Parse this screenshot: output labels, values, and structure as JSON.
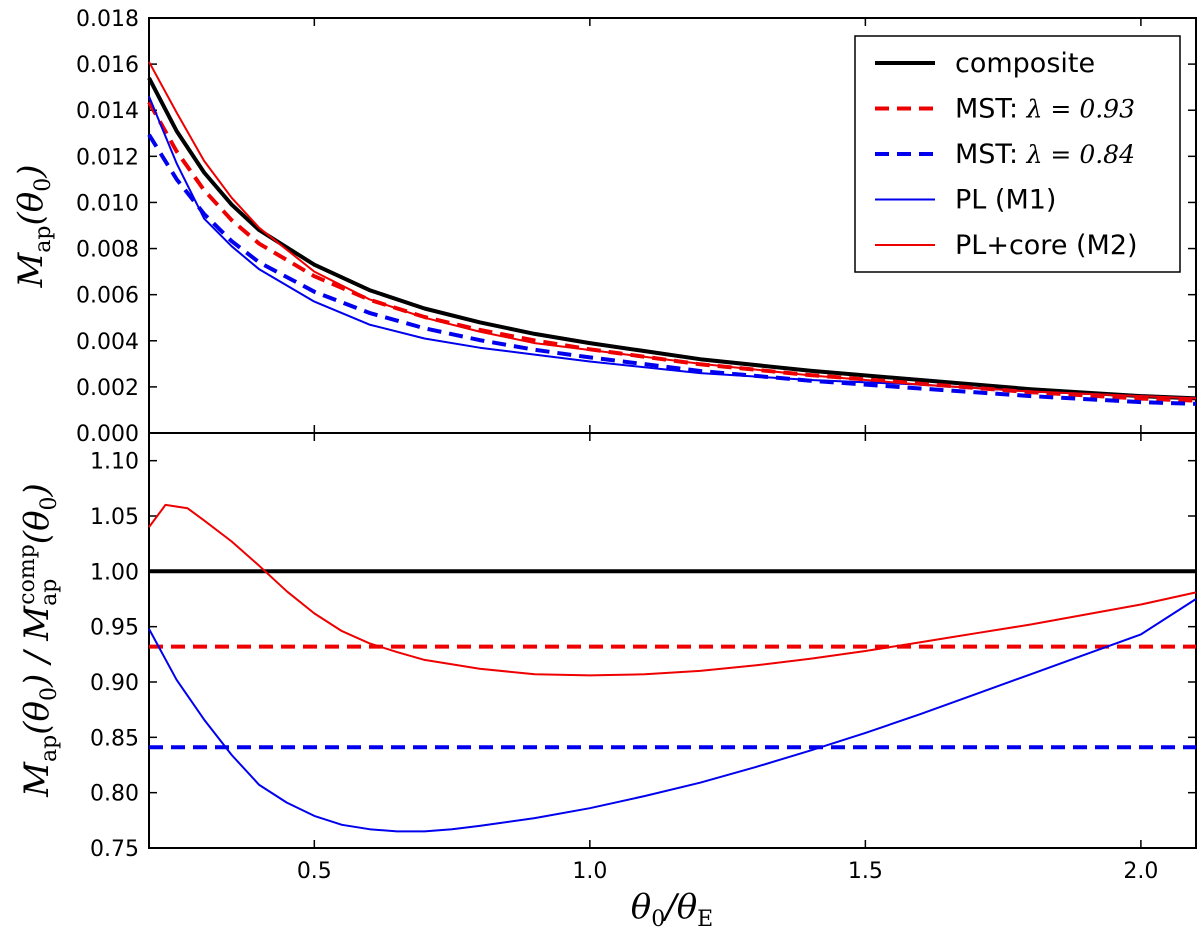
{
  "chart_data": [
    {
      "panel": "top",
      "type": "line",
      "xlabel": "θ0/θE",
      "ylabel": "Map(θ0)",
      "xlim": [
        0.2,
        2.1
      ],
      "ylim": [
        0.0,
        0.018
      ],
      "yticks": [
        "0.000",
        "0.002",
        "0.004",
        "0.006",
        "0.008",
        "0.010",
        "0.012",
        "0.014",
        "0.016",
        "0.018"
      ],
      "ytick_values": [
        0.0,
        0.002,
        0.004,
        0.006,
        0.008,
        0.01,
        0.012,
        0.014,
        0.016,
        0.018
      ],
      "legend_position": "top-right",
      "series": [
        {
          "name": "composite",
          "label": "composite",
          "color": "#000000",
          "style": "solid",
          "weight": "thick",
          "x": [
            0.2,
            0.25,
            0.3,
            0.35,
            0.4,
            0.5,
            0.6,
            0.7,
            0.8,
            0.9,
            1.0,
            1.2,
            1.4,
            1.6,
            1.8,
            2.0,
            2.1
          ],
          "values": [
            0.0154,
            0.0131,
            0.0113,
            0.0099,
            0.0088,
            0.0073,
            0.0062,
            0.0054,
            0.0048,
            0.0043,
            0.0039,
            0.0032,
            0.0027,
            0.0023,
            0.0019,
            0.0016,
            0.0015
          ]
        },
        {
          "name": "mst-093",
          "label": "MST: ",
          "math": "λ = 0.93",
          "color": "#ee0000",
          "style": "dashed",
          "weight": "thick",
          "x": [
            0.2,
            0.25,
            0.3,
            0.35,
            0.4,
            0.5,
            0.6,
            0.7,
            0.8,
            0.9,
            1.0,
            1.2,
            1.4,
            1.6,
            1.8,
            2.0,
            2.1
          ],
          "values": [
            0.01435,
            0.01222,
            0.01053,
            0.00923,
            0.00821,
            0.0068,
            0.00578,
            0.00503,
            0.00447,
            0.00401,
            0.00363,
            0.00298,
            0.00251,
            0.00214,
            0.00177,
            0.00149,
            0.0014
          ]
        },
        {
          "name": "mst-084",
          "label": "MST: ",
          "math": "λ = 0.84",
          "color": "#0000ee",
          "style": "dashed",
          "weight": "thick",
          "x": [
            0.2,
            0.25,
            0.3,
            0.35,
            0.4,
            0.5,
            0.6,
            0.7,
            0.8,
            0.9,
            1.0,
            1.2,
            1.4,
            1.6,
            1.8,
            2.0,
            2.1
          ],
          "values": [
            0.01294,
            0.01101,
            0.0095,
            0.00832,
            0.0074,
            0.00613,
            0.00521,
            0.00454,
            0.00403,
            0.00361,
            0.00328,
            0.00269,
            0.00227,
            0.00193,
            0.0016,
            0.00134,
            0.00126
          ]
        },
        {
          "name": "pl-m1",
          "label": "PL (M1)",
          "color": "#0000ee",
          "style": "solid",
          "weight": "thin",
          "x": [
            0.2,
            0.25,
            0.3,
            0.35,
            0.4,
            0.5,
            0.6,
            0.7,
            0.8,
            0.9,
            1.0,
            1.2,
            1.4,
            1.6,
            1.8,
            2.0,
            2.1
          ],
          "values": [
            0.0146,
            0.0117,
            0.0093,
            0.0081,
            0.0071,
            0.0057,
            0.0047,
            0.0041,
            0.0037,
            0.0034,
            0.0031,
            0.0026,
            0.0023,
            0.0021,
            0.0018,
            0.0016,
            0.0015
          ]
        },
        {
          "name": "pl-core-m2",
          "label": "PL+core (M2)",
          "color": "#ee0000",
          "style": "solid",
          "weight": "thin",
          "x": [
            0.2,
            0.25,
            0.3,
            0.35,
            0.4,
            0.5,
            0.6,
            0.7,
            0.8,
            0.9,
            1.0,
            1.2,
            1.4,
            1.6,
            1.8,
            2.0,
            2.1
          ],
          "values": [
            0.0161,
            0.0139,
            0.0118,
            0.0102,
            0.0089,
            0.007,
            0.0058,
            0.005,
            0.0044,
            0.0039,
            0.0036,
            0.003,
            0.0025,
            0.0021,
            0.0018,
            0.0016,
            0.0015
          ]
        }
      ]
    },
    {
      "panel": "bottom",
      "type": "line",
      "xlabel": "θ0/θE",
      "ylabel": "Map(θ0)/Mapcomp(θ0)",
      "xlim": [
        0.2,
        2.1
      ],
      "ylim": [
        0.75,
        1.125
      ],
      "xticks": [
        "0.5",
        "1.0",
        "1.5",
        "2.0"
      ],
      "xtick_values": [
        0.5,
        1.0,
        1.5,
        2.0
      ],
      "yticks": [
        "0.75",
        "0.80",
        "0.85",
        "0.90",
        "0.95",
        "1.00",
        "1.05",
        "1.10"
      ],
      "ytick_values": [
        0.75,
        0.8,
        0.85,
        0.9,
        0.95,
        1.0,
        1.05,
        1.1
      ],
      "series": [
        {
          "name": "composite-ratio",
          "color": "#000000",
          "style": "solid",
          "weight": "thick",
          "x": [
            0.2,
            2.1
          ],
          "values": [
            1.0,
            1.0
          ]
        },
        {
          "name": "mst-093-ratio",
          "color": "#ee0000",
          "style": "dashed",
          "weight": "thick",
          "x": [
            0.2,
            2.1
          ],
          "values": [
            0.932,
            0.932
          ]
        },
        {
          "name": "mst-084-ratio",
          "color": "#0000ee",
          "style": "dashed",
          "weight": "thick",
          "x": [
            0.2,
            2.1
          ],
          "values": [
            0.841,
            0.841
          ]
        },
        {
          "name": "pl-m1-ratio",
          "color": "#0000ee",
          "style": "solid",
          "weight": "thin",
          "x": [
            0.2,
            0.25,
            0.3,
            0.35,
            0.4,
            0.45,
            0.5,
            0.55,
            0.6,
            0.65,
            0.7,
            0.75,
            0.8,
            0.9,
            1.0,
            1.1,
            1.2,
            1.3,
            1.4,
            1.5,
            1.6,
            1.7,
            1.8,
            1.9,
            2.0,
            2.1
          ],
          "values": [
            0.948,
            0.902,
            0.866,
            0.834,
            0.807,
            0.791,
            0.779,
            0.771,
            0.767,
            0.765,
            0.765,
            0.767,
            0.77,
            0.777,
            0.786,
            0.797,
            0.809,
            0.823,
            0.838,
            0.854,
            0.871,
            0.889,
            0.907,
            0.925,
            0.943,
            0.975
          ]
        },
        {
          "name": "pl-core-m2-ratio",
          "color": "#ee0000",
          "style": "solid",
          "weight": "thin",
          "x": [
            0.2,
            0.23,
            0.27,
            0.3,
            0.35,
            0.4,
            0.45,
            0.5,
            0.55,
            0.6,
            0.65,
            0.7,
            0.8,
            0.9,
            1.0,
            1.1,
            1.2,
            1.3,
            1.4,
            1.5,
            1.6,
            1.7,
            1.8,
            1.9,
            2.0,
            2.1
          ],
          "values": [
            1.04,
            1.06,
            1.057,
            1.046,
            1.027,
            1.005,
            0.982,
            0.962,
            0.946,
            0.935,
            0.927,
            0.92,
            0.912,
            0.907,
            0.906,
            0.907,
            0.91,
            0.915,
            0.921,
            0.928,
            0.936,
            0.944,
            0.952,
            0.961,
            0.97,
            0.981
          ]
        }
      ]
    }
  ]
}
